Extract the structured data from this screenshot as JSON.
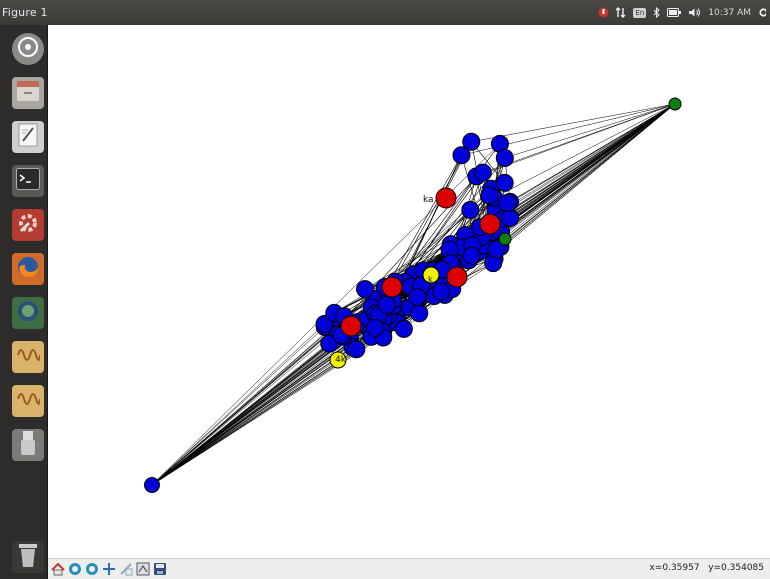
{
  "window": {
    "title": "Figure 1"
  },
  "tray": {
    "keyboard": "En",
    "time": "10:37 AM"
  },
  "launcher": {
    "items": [
      {
        "name": "dash-home-icon",
        "color": "#777777"
      },
      {
        "name": "files-icon",
        "color": "#b8614a"
      },
      {
        "name": "text-editor-icon",
        "color": "#dcdcdc"
      },
      {
        "name": "terminal-icon",
        "color": "#2b2b2b"
      },
      {
        "name": "system-settings-icon",
        "color": "#b23a2f"
      },
      {
        "name": "firefox-icon",
        "color": "#e46d21"
      },
      {
        "name": "software-icon",
        "color": "#3a6b3f"
      },
      {
        "name": "signal-app-icon",
        "color": "#c9a255"
      },
      {
        "name": "signal-app-icon-2",
        "color": "#c9a255"
      },
      {
        "name": "usb-drive-icon",
        "color": "#cfcfcf"
      },
      {
        "name": "trash-icon",
        "color": "#bbbbbb"
      }
    ]
  },
  "graph": {
    "node_colors": {
      "main": "#0000d8",
      "red": "#dd0000",
      "yellow": "#f3f300",
      "green": "#0f7d0f"
    },
    "visible_labels": [
      "ka",
      "4k",
      "k"
    ]
  },
  "toolbar": {
    "tools": [
      "home-icon",
      "back-icon",
      "forward-icon",
      "pan-icon",
      "zoom-icon",
      "configure-icon",
      "save-icon"
    ]
  },
  "status": {
    "x": "x=0.35957",
    "y": "y=0.354085"
  }
}
